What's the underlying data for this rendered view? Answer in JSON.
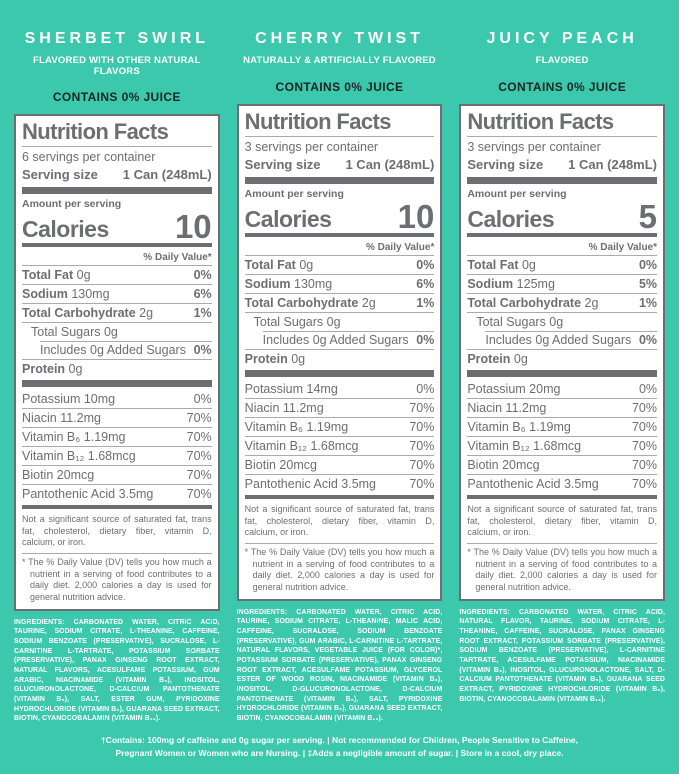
{
  "page": {
    "background_color": "#3bc8ad",
    "panel_text_color": "#6d6e71"
  },
  "footer": {
    "line1": "†Contains: 100mg of caffeine and 0g sugar per serving.  |  Not recommended for Children, People Sensitive to Caffeine,",
    "line2": "Pregnant Women or Women who are Nursing.  |  ‡Adds a negligible amount of sugar.  |  Store in a cool, dry place."
  },
  "panels": [
    {
      "flavor": "SHERBET SWIRL",
      "subtitle": "FLAVORED WITH OTHER NATURAL FLAVORS",
      "juice": "CONTAINS 0% JUICE",
      "nf": {
        "title": "Nutrition Facts",
        "servings": "6 servings per container",
        "serving_size_label": "Serving size",
        "serving_size_value": "1 Can (248mL)",
        "amount_per_serving": "Amount per serving",
        "calories_label": "Calories",
        "calories_value": "10",
        "daily_value_header": "% Daily Value*",
        "rows": [
          {
            "b": "Total Fat",
            "t": "0g",
            "dv": "0%"
          },
          {
            "b": "Sodium",
            "t": "130mg",
            "dv": "6%"
          },
          {
            "b": "Total Carbohydrate",
            "t": "2g",
            "dv": "1%"
          },
          {
            "b": "",
            "t": "Total Sugars 0g",
            "dv": ""
          },
          {
            "b": "",
            "t": "Includes 0g Added Sugars",
            "dv": "0%"
          },
          {
            "b": "Protein",
            "t": "0g",
            "dv": ""
          }
        ],
        "vitamins": [
          {
            "t": "Potassium 10mg",
            "dv": "0%"
          },
          {
            "t": "Niacin 11.2mg",
            "dv": "70%"
          },
          {
            "t": "Vitamin B₆ 1.19mg",
            "dv": "70%"
          },
          {
            "t": "Vitamin B₁₂ 1.68mcg",
            "dv": "70%"
          },
          {
            "t": "Biotin 20mcg",
            "dv": "70%"
          },
          {
            "t": "Pantothenic Acid 3.5mg",
            "dv": "70%"
          }
        ],
        "not_significant": "Not a significant source of saturated fat, trans fat, cholesterol, dietary fiber, vitamin D, calcium, or iron.",
        "footnote": "* The % Daily Value (DV) tells you how much a nutrient in a serving of food contributes to a daily diet. 2,000 calories a day is used for general nutrition advice."
      },
      "ingredients": "INGREDIENTS: CARBONATED WATER, CITRIC ACID, TAURINE, SODIUM CITRATE, L-THEANINE, CAFFEINE, SODIUM BENZOATE (PRESERVATIVE), SUCRALOSE, L-CARNITINE L-TARTRATE, POTASSIUM SORBATE (PRESERVATIVE), PANAX GINSENG ROOT EXTRACT, NATURAL FLAVORS, ACESULFAME POTASSIUM, GUM ARABIC, NIACINAMIDE (VITAMIN B₃), INOSITOL, GLUCURONOLACTONE, D-CALCIUM PANTOTHENATE (VITAMIN B₅), SALT, ESTER GUM, PYRIDOXINE HYDROCHLORIDE (VITAMIN B₆), GUARANA SEED EXTRACT, BIOTIN, CYANOCOBALAMIN (VITAMIN B₁₂)."
    },
    {
      "flavor": "CHERRY TWIST",
      "subtitle": "NATURALLY & ARTIFICIALLY FLAVORED",
      "juice": "CONTAINS 0% JUICE",
      "nf": {
        "title": "Nutrition Facts",
        "servings": "3 servings per container",
        "serving_size_label": "Serving size",
        "serving_size_value": "1 Can (248mL)",
        "amount_per_serving": "Amount per serving",
        "calories_label": "Calories",
        "calories_value": "10",
        "daily_value_header": "% Daily Value*",
        "rows": [
          {
            "b": "Total Fat",
            "t": "0g",
            "dv": "0%"
          },
          {
            "b": "Sodium",
            "t": "130mg",
            "dv": "6%"
          },
          {
            "b": "Total Carbohydrate",
            "t": "2g",
            "dv": "1%"
          },
          {
            "b": "",
            "t": "Total Sugars 0g",
            "dv": ""
          },
          {
            "b": "",
            "t": "Includes 0g Added Sugars",
            "dv": "0%"
          },
          {
            "b": "Protein",
            "t": "0g",
            "dv": ""
          }
        ],
        "vitamins": [
          {
            "t": "Potassium 14mg",
            "dv": "0%"
          },
          {
            "t": "Niacin 11.2mg",
            "dv": "70%"
          },
          {
            "t": "Vitamin B₆ 1.19mg",
            "dv": "70%"
          },
          {
            "t": "Vitamin B₁₂ 1.68mcg",
            "dv": "70%"
          },
          {
            "t": "Biotin 20mcg",
            "dv": "70%"
          },
          {
            "t": "Pantothenic Acid 3.5mg",
            "dv": "70%"
          }
        ],
        "not_significant": "Not a significant source of saturated fat, trans fat, cholesterol, dietary fiber, vitamin D, calcium, or iron.",
        "footnote": "* The % Daily Value (DV) tells you how much a nutrient in a serving of food contributes to a daily diet. 2,000 calories a day is used for general nutrition advice."
      },
      "ingredients": "INGREDIENTS: CARBONATED WATER, CITRIC ACID, TAURINE, SODIUM CITRATE, L-THEANINE, MALIC ACID, CAFFEINE, SUCRALOSE, SODIUM BENZOATE (PRESERVATIVE), GUM ARABIC, L-CARNITINE L-TARTRATE, NATURAL FLAVORS, VEGETABLE JUICE (FOR COLOR)*, POTASSIUM SORBATE (PRESERVATIVE), PANAX GINSENG ROOT EXTRACT, ACESULFAME POTASSIUM, GLYCEROL ESTER OF WOOD ROSIN, NIACINAMIDE (VITAMIN B₃), INOSITOL, D-GLUCURONOLACTONE, D-CALCIUM PANTOTHENATE (VITAMIN B₅), SALT, PYRIDOXINE HYDROCHLORIDE (VITAMIN B₆), GUARANA SEED EXTRACT, BIOTIN, CYANOCOBALAMIN (VITAMIN B₁₂)."
    },
    {
      "flavor": "JUICY PEACH",
      "subtitle": "FLAVORED",
      "juice": "CONTAINS 0% JUICE",
      "nf": {
        "title": "Nutrition Facts",
        "servings": "3 servings per container",
        "serving_size_label": "Serving size",
        "serving_size_value": "1 Can (248mL)",
        "amount_per_serving": "Amount per serving",
        "calories_label": "Calories",
        "calories_value": "5",
        "daily_value_header": "% Daily Value*",
        "rows": [
          {
            "b": "Total Fat",
            "t": "0g",
            "dv": "0%"
          },
          {
            "b": "Sodium",
            "t": "125mg",
            "dv": "5%"
          },
          {
            "b": "Total Carbohydrate",
            "t": "2g",
            "dv": "1%"
          },
          {
            "b": "",
            "t": "Total Sugars 0g",
            "dv": ""
          },
          {
            "b": "",
            "t": "Includes 0g Added Sugars",
            "dv": "0%"
          },
          {
            "b": "Protein",
            "t": "0g",
            "dv": ""
          }
        ],
        "vitamins": [
          {
            "t": "Potassium 20mg",
            "dv": "0%"
          },
          {
            "t": "Niacin 11.2mg",
            "dv": "70%"
          },
          {
            "t": "Vitamin B₆ 1.19mg",
            "dv": "70%"
          },
          {
            "t": "Vitamin B₁₂ 1.68mcg",
            "dv": "70%"
          },
          {
            "t": "Biotin 20mcg",
            "dv": "70%"
          },
          {
            "t": "Pantothenic Acid 3.5mg",
            "dv": "70%"
          }
        ],
        "not_significant": "Not a significant source of saturated fat, trans fat, cholesterol, dietary fiber, vitamin D, calcium, or iron.",
        "footnote": "* The % Daily Value (DV) tells you how much a nutrient in a serving of food contributes to a daily diet. 2,000 calories a day is used for general nutrition advice."
      },
      "ingredients": "INGREDIENTS: CARBONATED WATER, CITRIC ACID, NATURAL FLAVOR, TAURINE, SODIUM CITRATE, L-THEANINE, CAFFEINE, SUCRALOSE, PANAX GINSENG ROOT EXTRACT, POTASSIUM SORBATE (PRESERVATIVE), SODIUM BENZOATE (PRESERVATIVE), L-CARNITINE TARTRATE, ACESULFAME POTASSIUM, NIACINAMIDE (VITAMIN B₃), INOSITOL, GLUCURONOLACTONE, SALT, D-CALCIUM PANTOTHENATE (VITAMIN B₅), GUARANA SEED EXTRACT, PYRIDOXINE HYDROCHLORIDE (VITAMIN B₆), BIOTIN, CYANOCOBALAMIN (VITAMIN B₁₂)."
    }
  ]
}
